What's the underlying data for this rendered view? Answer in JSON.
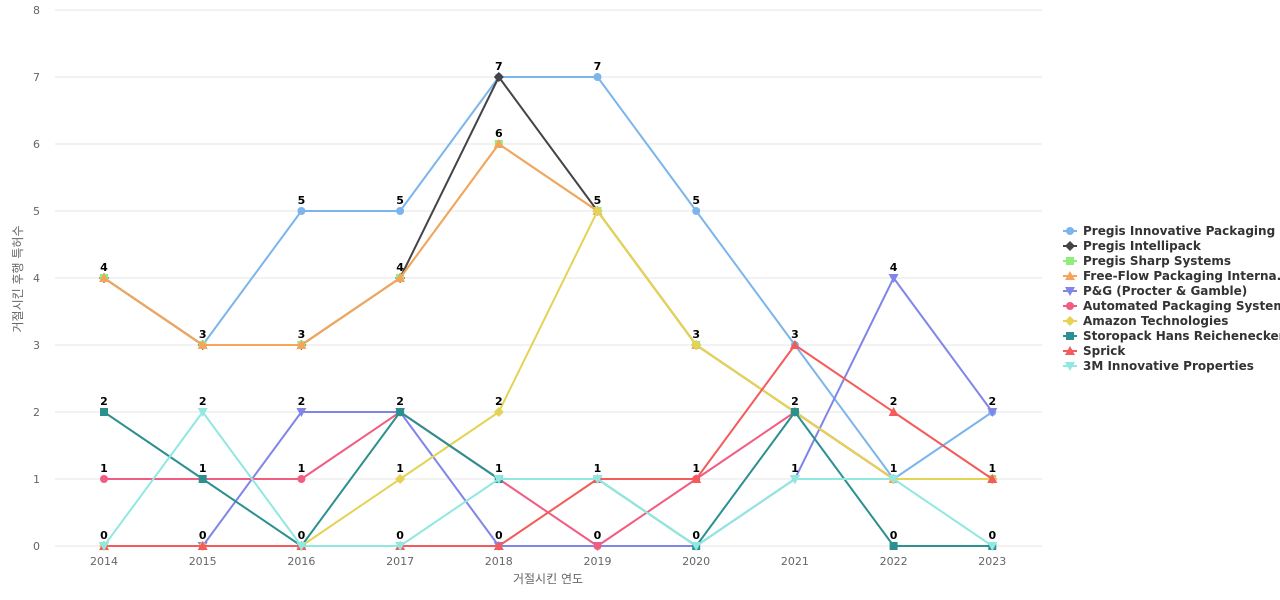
{
  "chart_data": {
    "type": "line",
    "title": "",
    "xlabel": "거절시킨 연도",
    "ylabel": "거절시킨 후행 특허수",
    "categories": [
      "2014",
      "2015",
      "2016",
      "2017",
      "2018",
      "2019",
      "2020",
      "2021",
      "2022",
      "2023"
    ],
    "y_ticks": [
      "0",
      "1",
      "2",
      "3",
      "4",
      "5",
      "6",
      "7",
      "8"
    ],
    "ylim": [
      0,
      8
    ],
    "grid": true,
    "legend_position": "right",
    "series": [
      {
        "name": "Pregis Innovative Packaging",
        "color": "#7cb5ec",
        "marker": "circle",
        "values": [
          4,
          3,
          5,
          5,
          7,
          7,
          5,
          3,
          1,
          2
        ]
      },
      {
        "name": "Pregis Intellipack",
        "color": "#434348",
        "marker": "diamond",
        "values": [
          4,
          3,
          3,
          4,
          7,
          5,
          3,
          2,
          1,
          1
        ]
      },
      {
        "name": "Pregis Sharp Systems",
        "color": "#90ed7d",
        "marker": "square",
        "values": [
          4,
          3,
          3,
          4,
          6,
          5,
          3,
          2,
          1,
          1
        ]
      },
      {
        "name": "Free-Flow Packaging Interna...",
        "color": "#f7a35c",
        "marker": "triangle",
        "values": [
          4,
          3,
          3,
          4,
          6,
          5,
          3,
          2,
          1,
          1
        ]
      },
      {
        "name": "P&G (Procter & Gamble)",
        "color": "#8085e9",
        "marker": "triangle-down",
        "values": [
          0,
          0,
          2,
          2,
          0,
          0,
          0,
          1,
          4,
          2
        ]
      },
      {
        "name": "Automated Packaging Systems",
        "color": "#f15c80",
        "marker": "circle",
        "values": [
          1,
          1,
          1,
          2,
          1,
          0,
          1,
          2,
          1,
          1
        ]
      },
      {
        "name": "Amazon Technologies",
        "color": "#e4d354",
        "marker": "diamond",
        "values": [
          0,
          0,
          0,
          1,
          2,
          5,
          3,
          2,
          1,
          1
        ]
      },
      {
        "name": "Storopack Hans Reichenecker",
        "color": "#2b908f",
        "marker": "square",
        "values": [
          2,
          1,
          0,
          2,
          1,
          1,
          0,
          2,
          0,
          0
        ]
      },
      {
        "name": "Sprick",
        "color": "#f45b5b",
        "marker": "triangle",
        "values": [
          0,
          0,
          0,
          0,
          0,
          1,
          1,
          3,
          2,
          1
        ]
      },
      {
        "name": "3M Innovative Properties",
        "color": "#91e8e1",
        "marker": "triangle-down",
        "values": [
          0,
          2,
          0,
          0,
          1,
          1,
          0,
          1,
          1,
          0
        ]
      }
    ],
    "data_labels": [
      {
        "x": "2014",
        "y": 4,
        "text": "4"
      },
      {
        "x": "2014",
        "y": 2,
        "text": "2"
      },
      {
        "x": "2014",
        "y": 1,
        "text": "1"
      },
      {
        "x": "2014",
        "y": 0,
        "text": "0"
      },
      {
        "x": "2015",
        "y": 3,
        "text": "3"
      },
      {
        "x": "2015",
        "y": 2,
        "text": "2"
      },
      {
        "x": "2015",
        "y": 1,
        "text": "1"
      },
      {
        "x": "2015",
        "y": 0,
        "text": "0"
      },
      {
        "x": "2016",
        "y": 5,
        "text": "5"
      },
      {
        "x": "2016",
        "y": 3,
        "text": "3"
      },
      {
        "x": "2016",
        "y": 2,
        "text": "2"
      },
      {
        "x": "2016",
        "y": 1,
        "text": "1"
      },
      {
        "x": "2016",
        "y": 0,
        "text": "0"
      },
      {
        "x": "2017",
        "y": 5,
        "text": "5"
      },
      {
        "x": "2017",
        "y": 4,
        "text": "4"
      },
      {
        "x": "2017",
        "y": 2,
        "text": "2"
      },
      {
        "x": "2017",
        "y": 1,
        "text": "1"
      },
      {
        "x": "2017",
        "y": 0,
        "text": "0"
      },
      {
        "x": "2018",
        "y": 7,
        "text": "7"
      },
      {
        "x": "2018",
        "y": 6,
        "text": "6"
      },
      {
        "x": "2018",
        "y": 2,
        "text": "2"
      },
      {
        "x": "2018",
        "y": 1,
        "text": "1"
      },
      {
        "x": "2018",
        "y": 0,
        "text": "0"
      },
      {
        "x": "2019",
        "y": 7,
        "text": "7"
      },
      {
        "x": "2019",
        "y": 5,
        "text": "5"
      },
      {
        "x": "2019",
        "y": 1,
        "text": "1"
      },
      {
        "x": "2019",
        "y": 0,
        "text": "0"
      },
      {
        "x": "2020",
        "y": 5,
        "text": "5"
      },
      {
        "x": "2020",
        "y": 3,
        "text": "3"
      },
      {
        "x": "2020",
        "y": 1,
        "text": "1"
      },
      {
        "x": "2020",
        "y": 0,
        "text": "0"
      },
      {
        "x": "2021",
        "y": 3,
        "text": "3"
      },
      {
        "x": "2021",
        "y": 2,
        "text": "2"
      },
      {
        "x": "2021",
        "y": 1,
        "text": "1"
      },
      {
        "x": "2022",
        "y": 4,
        "text": "4"
      },
      {
        "x": "2022",
        "y": 2,
        "text": "2"
      },
      {
        "x": "2022",
        "y": 1,
        "text": "1"
      },
      {
        "x": "2022",
        "y": 0,
        "text": "0"
      },
      {
        "x": "2023",
        "y": 2,
        "text": "2"
      },
      {
        "x": "2023",
        "y": 1,
        "text": "1"
      },
      {
        "x": "2023",
        "y": 0,
        "text": "0"
      }
    ]
  }
}
